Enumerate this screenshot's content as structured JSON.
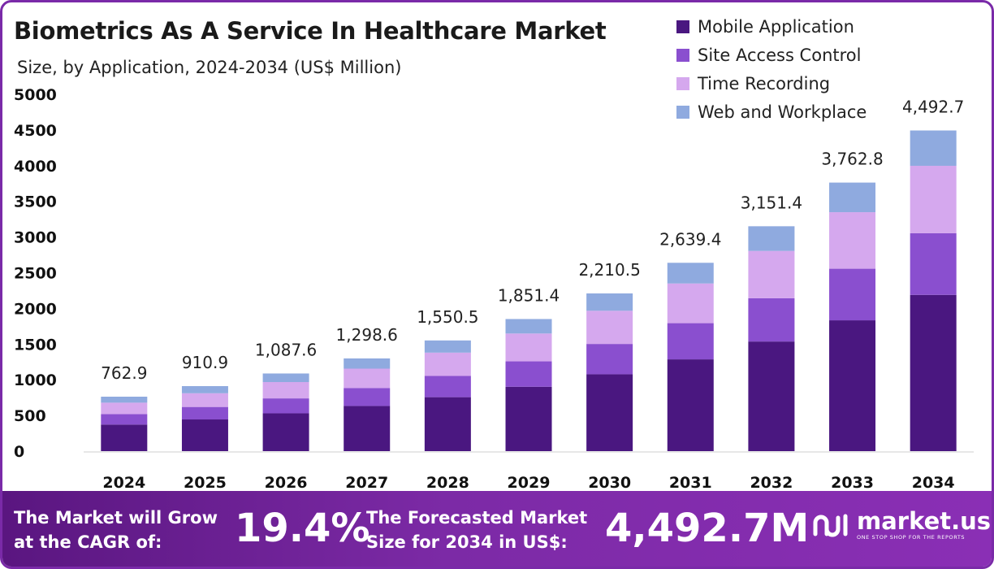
{
  "chart_data": {
    "type": "bar",
    "stacked": true,
    "title": "Biometrics As A Service In Healthcare Market",
    "subtitle": "Size, by Application, 2024-2034 (US$ Million)",
    "categories": [
      "2024",
      "2025",
      "2026",
      "2027",
      "2028",
      "2029",
      "2030",
      "2031",
      "2032",
      "2033",
      "2034"
    ],
    "totals": [
      762.9,
      910.9,
      1087.6,
      1298.6,
      1550.5,
      1851.4,
      2210.5,
      2639.4,
      3151.4,
      3762.8,
      4492.7
    ],
    "total_labels": [
      "762.9",
      "910.9",
      "1,087.6",
      "1,298.6",
      "1,550.5",
      "1,851.4",
      "2,210.5",
      "2,639.4",
      "3,151.4",
      "3,762.8",
      "4,492.7"
    ],
    "series": [
      {
        "name": "Mobile Application",
        "color": "#4a1780",
        "values": [
          372,
          444,
          530,
          633,
          756,
          902,
          1077,
          1286,
          1536,
          1833,
          2189
        ]
      },
      {
        "name": "Site Access Control",
        "color": "#8a4fcf",
        "values": [
          146,
          175,
          209,
          250,
          298,
          356,
          425,
          507,
          606,
          723,
          864
        ]
      },
      {
        "name": "Time Recording",
        "color": "#d5a8ee",
        "values": [
          161,
          192,
          229,
          273,
          326,
          390,
          465,
          556,
          663,
          792,
          945
        ]
      },
      {
        "name": "Web and Workplace",
        "color": "#8faadf",
        "values": [
          84,
          100,
          120,
          143,
          171,
          203,
          243,
          290,
          346,
          415,
          495
        ]
      }
    ],
    "yticks": [
      "0",
      "500",
      "1000",
      "1500",
      "2000",
      "2500",
      "3000",
      "3500",
      "4000",
      "4500",
      "5000"
    ],
    "ylim": [
      0,
      5000
    ],
    "xlabel": "",
    "ylabel": "",
    "legend_position": "top-right",
    "grid": false
  },
  "footer": {
    "cagr_text_line1": "The Market will Grow",
    "cagr_text_line2": "at the CAGR of:",
    "cagr_value": "19.4%",
    "forecast_text_line1": "The Forecasted Market",
    "forecast_text_line2": "Size for 2034 in US$:",
    "forecast_value": "4,492.7M",
    "brand_name": "market.us",
    "brand_tagline": "ONE STOP SHOP FOR THE REPORTS"
  }
}
